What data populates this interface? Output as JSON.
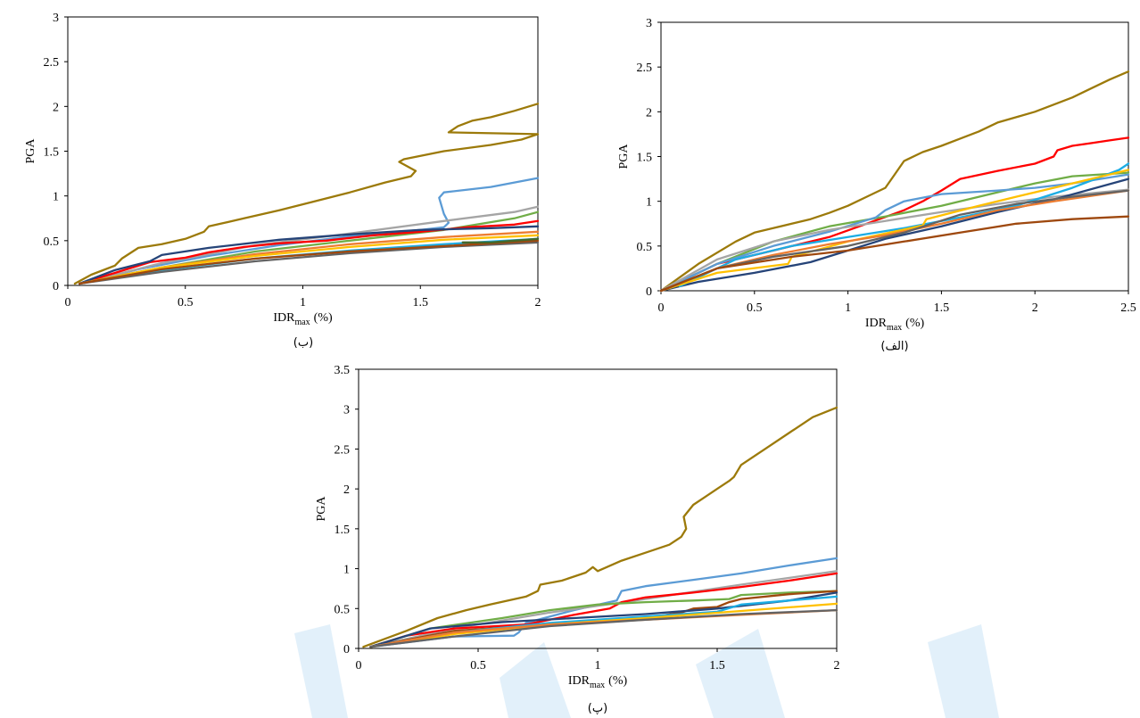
{
  "chart_data": [
    {
      "id": "b",
      "type": "line",
      "caption": "(ب)",
      "xlabel": "IDR",
      "xlabel_sub": "max",
      "xlabel_unit": "(%)",
      "ylabel": "PGA",
      "xlim": [
        0,
        2
      ],
      "ylim": [
        0,
        3
      ],
      "xticks": [
        "0",
        "0.5",
        "1",
        "1.5",
        "2"
      ],
      "xtick_values": [
        0,
        0.5,
        1,
        1.5,
        2
      ],
      "yticks": [
        "0",
        "0.5",
        "1",
        "1.5",
        "2",
        "2.5",
        "3"
      ],
      "ytick_values": [
        0,
        0.5,
        1,
        1.5,
        2,
        2.5,
        3
      ],
      "grid": false,
      "series": [
        {
          "color": "#9C7A0A",
          "x": [
            0.03,
            0.1,
            0.2,
            0.23,
            0.3,
            0.4,
            0.5,
            0.58,
            0.6,
            0.75,
            0.9,
            1.05,
            1.2,
            1.35,
            1.46,
            1.48,
            1.41,
            1.43,
            1.6,
            1.8,
            1.93,
            2.0,
            1.62,
            1.66,
            1.72,
            1.8,
            1.9,
            2.0
          ],
          "y": [
            0.02,
            0.12,
            0.22,
            0.3,
            0.42,
            0.46,
            0.52,
            0.6,
            0.66,
            0.75,
            0.84,
            0.94,
            1.04,
            1.15,
            1.22,
            1.28,
            1.38,
            1.41,
            1.5,
            1.57,
            1.63,
            1.69,
            1.71,
            1.78,
            1.84,
            1.88,
            1.95,
            2.03
          ]
        },
        {
          "color": "#5B9BD5",
          "x": [
            0.05,
            0.3,
            0.6,
            0.9,
            1.2,
            1.5,
            1.6,
            1.62,
            1.6,
            1.58,
            1.6,
            1.8,
            2.0
          ],
          "y": [
            0.02,
            0.18,
            0.33,
            0.45,
            0.55,
            0.62,
            0.65,
            0.7,
            0.8,
            0.98,
            1.04,
            1.1,
            1.2
          ]
        },
        {
          "color": "#A5A5A5",
          "x": [
            0.05,
            0.4,
            0.8,
            1.2,
            1.6,
            1.9,
            2.0
          ],
          "y": [
            0.02,
            0.25,
            0.45,
            0.58,
            0.72,
            0.82,
            0.88
          ]
        },
        {
          "color": "#70AD47",
          "x": [
            0.05,
            0.4,
            0.8,
            1.2,
            1.6,
            1.9,
            2.0
          ],
          "y": [
            0.02,
            0.2,
            0.38,
            0.5,
            0.62,
            0.75,
            0.82
          ]
        },
        {
          "color": "#FF0000",
          "x": [
            0.05,
            0.2,
            0.35,
            0.5,
            0.6,
            0.75,
            0.9,
            1.1,
            1.3,
            1.5,
            1.7,
            1.9,
            2.0
          ],
          "y": [
            0.02,
            0.14,
            0.26,
            0.31,
            0.37,
            0.43,
            0.47,
            0.5,
            0.56,
            0.6,
            0.65,
            0.68,
            0.72
          ]
        },
        {
          "color": "#264478",
          "x": [
            0.05,
            0.2,
            0.35,
            0.4,
            0.6,
            0.9,
            1.2,
            1.5,
            1.8,
            2.0
          ],
          "y": [
            0.02,
            0.17,
            0.27,
            0.34,
            0.42,
            0.51,
            0.57,
            0.62,
            0.64,
            0.66
          ]
        },
        {
          "color": "#ED7D31",
          "x": [
            0.05,
            0.4,
            0.8,
            1.2,
            1.6,
            2.0
          ],
          "y": [
            0.02,
            0.2,
            0.35,
            0.46,
            0.54,
            0.6
          ]
        },
        {
          "color": "#FFC000",
          "x": [
            0.05,
            0.4,
            0.8,
            1.2,
            1.6,
            2.0
          ],
          "y": [
            0.02,
            0.2,
            0.33,
            0.43,
            0.51,
            0.56
          ]
        },
        {
          "color": "#1CADE4",
          "x": [
            0.05,
            0.4,
            0.8,
            1.2,
            1.6,
            2.0
          ],
          "y": [
            0.02,
            0.17,
            0.3,
            0.39,
            0.46,
            0.52
          ]
        },
        {
          "color": "#636363",
          "x": [
            0.05,
            0.4,
            0.8,
            1.2,
            1.6,
            2.0
          ],
          "y": [
            0.02,
            0.15,
            0.27,
            0.36,
            0.43,
            0.48
          ]
        },
        {
          "color": "#9E480E",
          "x": [
            0.05,
            0.4,
            0.8,
            1.2,
            1.6,
            2.0
          ],
          "y": [
            0.02,
            0.18,
            0.3,
            0.38,
            0.44,
            0.5
          ]
        },
        {
          "color": "#43682B",
          "x": [
            1.68,
            1.8,
            1.9,
            2.0
          ],
          "y": [
            0.48,
            0.48,
            0.5,
            0.52
          ]
        }
      ]
    },
    {
      "id": "alef",
      "type": "line",
      "caption": "(الف)",
      "xlabel": "IDR",
      "xlabel_sub": "max",
      "xlabel_unit": "(%)",
      "ylabel": "PGA",
      "xlim": [
        0,
        2.5
      ],
      "ylim": [
        0,
        3
      ],
      "xticks": [
        "0",
        "0.5",
        "1",
        "1.5",
        "2",
        "2.5"
      ],
      "xtick_values": [
        0,
        0.5,
        1,
        1.5,
        2,
        2.5
      ],
      "yticks": [
        "0",
        "0.5",
        "1",
        "1.5",
        "2",
        "2.5",
        "3"
      ],
      "ytick_values": [
        0,
        0.5,
        1,
        1.5,
        2,
        2.5,
        3
      ],
      "grid": false,
      "series": [
        {
          "color": "#9C7A0A",
          "x": [
            0.0,
            0.2,
            0.4,
            0.5,
            0.6,
            0.7,
            0.8,
            0.9,
            1.0,
            1.1,
            1.2,
            1.25,
            1.3,
            1.4,
            1.5,
            1.6,
            1.7,
            1.75,
            1.8,
            1.9,
            2.0,
            2.1,
            2.2,
            2.3,
            2.4,
            2.5
          ],
          "y": [
            0.0,
            0.3,
            0.55,
            0.65,
            0.7,
            0.75,
            0.8,
            0.87,
            0.95,
            1.05,
            1.15,
            1.3,
            1.45,
            1.55,
            1.62,
            1.7,
            1.78,
            1.83,
            1.88,
            1.94,
            2.0,
            2.08,
            2.16,
            2.26,
            2.36,
            2.45
          ]
        },
        {
          "color": "#FF0000",
          "x": [
            0.0,
            0.3,
            0.6,
            0.9,
            1.1,
            1.3,
            1.4,
            1.5,
            1.6,
            1.8,
            2.0,
            2.1,
            2.12,
            2.2,
            2.3,
            2.4,
            2.5
          ],
          "y": [
            0.0,
            0.3,
            0.45,
            0.6,
            0.75,
            0.9,
            1.0,
            1.12,
            1.25,
            1.34,
            1.42,
            1.5,
            1.57,
            1.62,
            1.65,
            1.68,
            1.71
          ]
        },
        {
          "color": "#70AD47",
          "x": [
            0.0,
            0.3,
            0.6,
            0.9,
            1.2,
            1.5,
            1.8,
            2.0,
            2.2,
            2.5
          ],
          "y": [
            0.0,
            0.3,
            0.55,
            0.72,
            0.83,
            0.95,
            1.1,
            1.2,
            1.28,
            1.32
          ]
        },
        {
          "color": "#5B9BD5",
          "x": [
            0.0,
            0.3,
            0.6,
            0.9,
            1.15,
            1.2,
            1.3,
            1.5,
            1.8,
            2.0,
            2.2,
            2.5
          ],
          "y": [
            0.0,
            0.3,
            0.5,
            0.66,
            0.82,
            0.9,
            1.0,
            1.08,
            1.12,
            1.15,
            1.2,
            1.3
          ]
        },
        {
          "color": "#A5A5A5",
          "x": [
            0.0,
            0.3,
            0.6,
            0.9,
            1.2,
            1.5,
            1.8,
            2.1,
            2.5
          ],
          "y": [
            0.0,
            0.35,
            0.55,
            0.68,
            0.78,
            0.88,
            0.97,
            1.05,
            1.13
          ]
        },
        {
          "color": "#264478",
          "x": [
            0.0,
            0.2,
            0.5,
            0.8,
            1.0,
            1.2,
            1.5,
            1.8,
            2.1,
            2.5
          ],
          "y": [
            0.0,
            0.1,
            0.2,
            0.32,
            0.45,
            0.58,
            0.72,
            0.88,
            1.02,
            1.25
          ]
        },
        {
          "color": "#1CADE4",
          "x": [
            0.1,
            0.4,
            0.7,
            1.0,
            1.3,
            1.6,
            1.9,
            2.2,
            2.45,
            2.5
          ],
          "y": [
            0.05,
            0.35,
            0.5,
            0.6,
            0.7,
            0.82,
            0.95,
            1.15,
            1.35,
            1.42
          ]
        },
        {
          "color": "#FFC000",
          "x": [
            0.0,
            0.3,
            0.68,
            0.7,
            1.0,
            1.4,
            1.42,
            1.7,
            2.0,
            2.3,
            2.5
          ],
          "y": [
            0.0,
            0.2,
            0.3,
            0.38,
            0.55,
            0.73,
            0.8,
            0.95,
            1.1,
            1.25,
            1.35
          ]
        },
        {
          "color": "#ED7D31",
          "x": [
            0.0,
            0.3,
            0.6,
            0.9,
            1.2,
            1.5,
            1.8,
            2.1,
            2.5
          ],
          "y": [
            0.0,
            0.25,
            0.4,
            0.52,
            0.62,
            0.75,
            0.9,
            1.0,
            1.12
          ]
        },
        {
          "color": "#636363",
          "x": [
            0.0,
            0.3,
            0.6,
            1.0,
            1.3,
            1.6,
            1.9,
            2.2,
            2.5
          ],
          "y": [
            0.0,
            0.25,
            0.38,
            0.5,
            0.65,
            0.85,
            0.97,
            1.05,
            1.12
          ]
        },
        {
          "color": "#9E480E",
          "x": [
            0.0,
            0.3,
            0.7,
            1.0,
            1.3,
            1.6,
            1.9,
            2.2,
            2.5
          ],
          "y": [
            0.0,
            0.25,
            0.38,
            0.45,
            0.55,
            0.65,
            0.75,
            0.8,
            0.83
          ]
        }
      ]
    },
    {
      "id": "pe",
      "type": "line",
      "caption": "(پ)",
      "xlabel": "IDR",
      "xlabel_sub": "max",
      "xlabel_unit": "(%)",
      "ylabel": "PGA",
      "xlim": [
        0,
        2
      ],
      "ylim": [
        0,
        3.5
      ],
      "xticks": [
        "0",
        "0.5",
        "1",
        "1.5",
        "2"
      ],
      "xtick_values": [
        0,
        0.5,
        1,
        1.5,
        2
      ],
      "yticks": [
        "0",
        "0.5",
        "1",
        "1.5",
        "2",
        "2.5",
        "3",
        "3.5"
      ],
      "ytick_values": [
        0,
        0.5,
        1,
        1.5,
        2,
        2.5,
        3,
        3.5
      ],
      "grid": false,
      "series": [
        {
          "color": "#9C7A0A",
          "x": [
            0.02,
            0.2,
            0.33,
            0.45,
            0.55,
            0.7,
            0.75,
            0.76,
            0.85,
            0.95,
            0.98,
            1.0,
            1.1,
            1.2,
            1.3,
            1.35,
            1.37,
            1.36,
            1.4,
            1.45,
            1.5,
            1.55,
            1.57,
            1.6,
            1.7,
            1.8,
            1.9,
            2.0
          ],
          "y": [
            0.02,
            0.22,
            0.38,
            0.48,
            0.55,
            0.65,
            0.72,
            0.8,
            0.85,
            0.95,
            1.02,
            0.97,
            1.1,
            1.2,
            1.3,
            1.4,
            1.5,
            1.65,
            1.8,
            1.9,
            2.0,
            2.1,
            2.15,
            2.3,
            2.5,
            2.7,
            2.9,
            3.02
          ]
        },
        {
          "color": "#5B9BD5",
          "x": [
            0.05,
            0.4,
            0.65,
            0.67,
            0.7,
            0.9,
            1.08,
            1.1,
            1.2,
            1.4,
            1.6,
            1.8,
            2.0
          ],
          "y": [
            0.02,
            0.15,
            0.16,
            0.2,
            0.32,
            0.48,
            0.6,
            0.72,
            0.78,
            0.86,
            0.94,
            1.04,
            1.13
          ]
        },
        {
          "color": "#A5A5A5",
          "x": [
            0.05,
            0.4,
            0.8,
            1.2,
            1.6,
            2.0
          ],
          "y": [
            0.02,
            0.25,
            0.45,
            0.62,
            0.8,
            0.97
          ]
        },
        {
          "color": "#FF0000",
          "x": [
            0.05,
            0.2,
            0.4,
            0.7,
            0.9,
            1.05,
            1.1,
            1.2,
            1.4,
            1.6,
            1.8,
            2.0
          ],
          "y": [
            0.02,
            0.16,
            0.25,
            0.3,
            0.42,
            0.5,
            0.58,
            0.64,
            0.7,
            0.77,
            0.85,
            0.94
          ]
        },
        {
          "color": "#70AD47",
          "x": [
            0.05,
            0.3,
            0.6,
            0.8,
            1.0,
            1.2,
            1.4,
            1.55,
            1.6,
            1.8,
            2.0
          ],
          "y": [
            0.02,
            0.25,
            0.38,
            0.48,
            0.55,
            0.58,
            0.6,
            0.62,
            0.67,
            0.7,
            0.72
          ]
        },
        {
          "color": "#9E480E",
          "x": [
            0.05,
            0.4,
            0.8,
            1.2,
            1.35,
            1.4,
            1.5,
            1.55,
            1.6,
            1.8,
            2.0
          ],
          "y": [
            0.02,
            0.22,
            0.3,
            0.38,
            0.45,
            0.5,
            0.52,
            0.58,
            0.62,
            0.68,
            0.72
          ]
        },
        {
          "color": "#264478",
          "x": [
            0.05,
            0.3,
            0.6,
            0.9,
            1.2,
            1.5,
            1.8,
            2.0
          ],
          "y": [
            0.02,
            0.25,
            0.33,
            0.38,
            0.43,
            0.5,
            0.6,
            0.7
          ]
        },
        {
          "color": "#1CADE4",
          "x": [
            0.05,
            0.4,
            0.8,
            1.2,
            1.5,
            1.6,
            1.8,
            2.0
          ],
          "y": [
            0.02,
            0.2,
            0.32,
            0.4,
            0.46,
            0.55,
            0.6,
            0.65
          ]
        },
        {
          "color": "#FFC000",
          "x": [
            0.05,
            0.4,
            0.8,
            1.2,
            1.6,
            2.0
          ],
          "y": [
            0.02,
            0.18,
            0.3,
            0.38,
            0.47,
            0.56
          ]
        },
        {
          "color": "#ED7D31",
          "x": [
            0.05,
            0.4,
            0.8,
            1.2,
            1.6,
            2.0
          ],
          "y": [
            0.02,
            0.2,
            0.3,
            0.36,
            0.42,
            0.48
          ]
        },
        {
          "color": "#636363",
          "x": [
            0.05,
            0.4,
            0.8,
            1.2,
            1.6,
            2.0
          ],
          "y": [
            0.02,
            0.15,
            0.28,
            0.36,
            0.43,
            0.48
          ]
        }
      ]
    }
  ]
}
